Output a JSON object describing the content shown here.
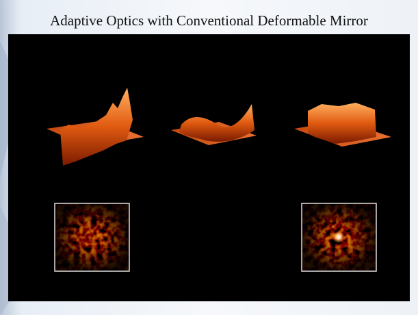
{
  "slide": {
    "title": "Adaptive Optics with Conventional Deformable Mirror"
  }
}
